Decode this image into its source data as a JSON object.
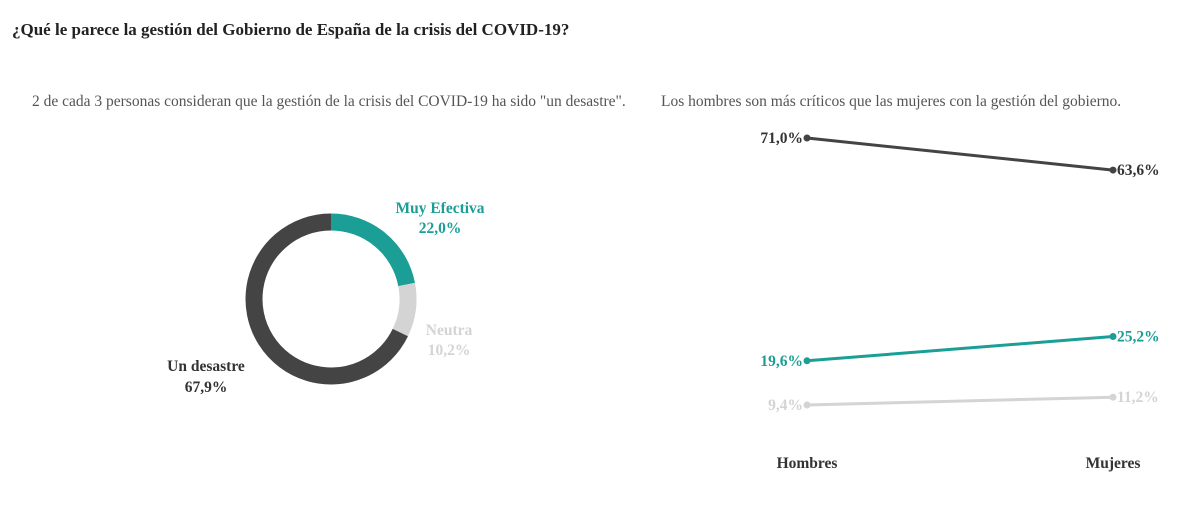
{
  "title": "¿Qué le parece la gestión del Gobierno de España de la crisis del COVID-19?",
  "colors": {
    "teal": "#1a9e96",
    "dark": "#444444",
    "light": "#d4d4d4"
  },
  "chart_data": [
    {
      "type": "pie",
      "subtitle": "2 de cada 3 personas consideran que la gestión de la crisis del COVID-19 ha sido \"un desastre\".",
      "slices": [
        {
          "name": "Muy Efectiva",
          "value": 22.0,
          "label": "22,0%",
          "color": "#1a9e96"
        },
        {
          "name": "Neutra",
          "value": 10.2,
          "label": "10,2%",
          "color": "#d4d4d4"
        },
        {
          "name": "Un desastre",
          "value": 67.9,
          "label": "67,9%",
          "color": "#444444"
        }
      ]
    },
    {
      "type": "line",
      "subtitle": "Los hombres son más críticos que las mujeres con la gestión del gobierno.",
      "categories": [
        "Hombres",
        "Mujeres"
      ],
      "series": [
        {
          "values": [
            71.0,
            63.6
          ],
          "labels": [
            "71,0%",
            "63,6%"
          ],
          "color": "#444444"
        },
        {
          "values": [
            19.6,
            25.2
          ],
          "labels": [
            "19,6%",
            "25,2%"
          ],
          "color": "#1a9e96"
        },
        {
          "values": [
            9.4,
            11.2
          ],
          "labels": [
            "9,4%",
            "11,2%"
          ],
          "color": "#d4d4d4"
        }
      ]
    }
  ]
}
